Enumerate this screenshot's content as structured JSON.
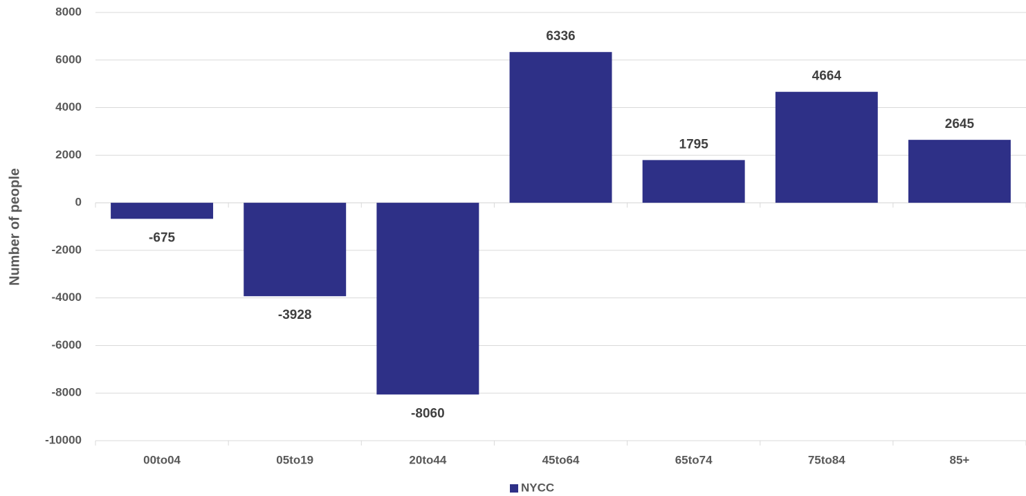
{
  "chart_data": {
    "type": "bar",
    "y_label": "Number of people",
    "categories": [
      "00to04",
      "05to19",
      "20to44",
      "45to64",
      "65to74",
      "75to84",
      "85+"
    ],
    "series": [
      {
        "name": "NYCC",
        "color": "#2e3087",
        "values": [
          -675,
          -3928,
          -8060,
          6336,
          1795,
          4664,
          2645
        ]
      }
    ],
    "ylim": [
      -10000,
      8000
    ],
    "yticks": [
      -10000,
      -8000,
      -6000,
      -4000,
      -2000,
      0,
      2000,
      4000,
      6000,
      8000
    ],
    "grid": true,
    "legend": "bottom"
  }
}
